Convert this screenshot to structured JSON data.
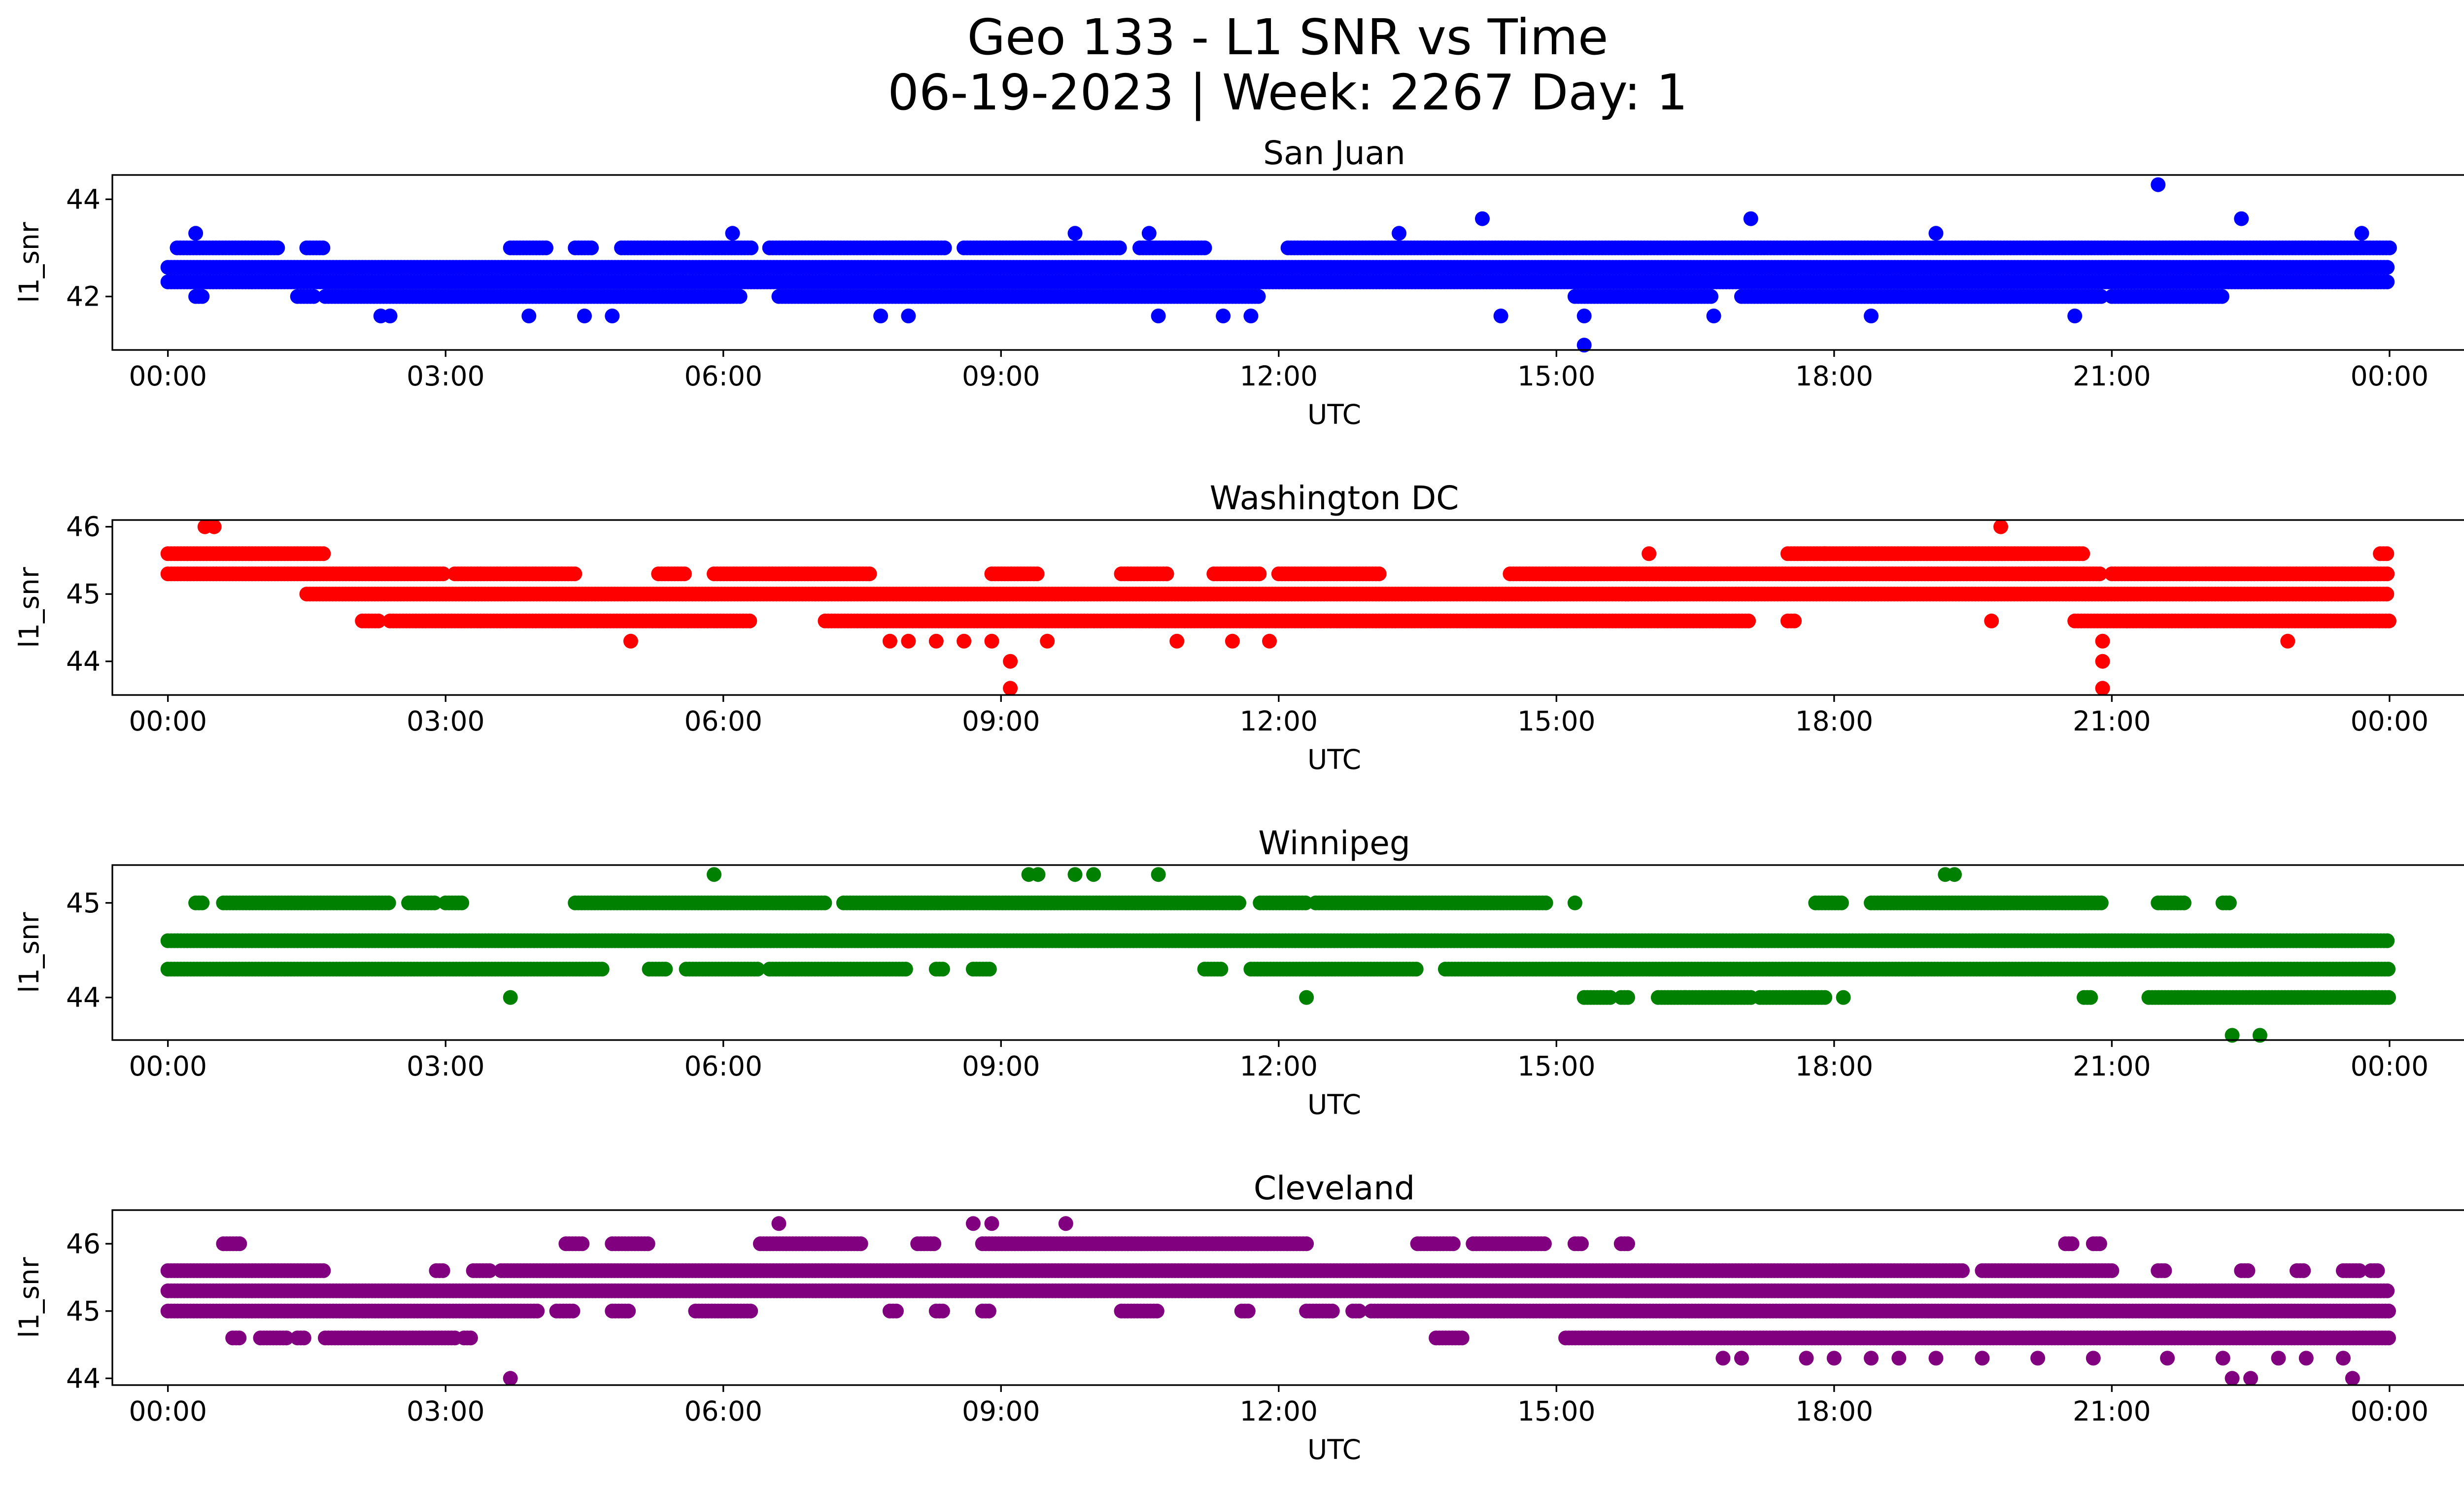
{
  "figure": {
    "title_line1": "Geo 133 - L1 SNR vs Time",
    "title_line2": "06-19-2023 | Week: 2267 Day: 1"
  },
  "chart_data": [
    {
      "type": "scatter",
      "title": "San Juan",
      "xlabel": "UTC",
      "ylabel": "l1_snr",
      "color": "#0000ff",
      "xlim_hours": [
        -0.6,
        25.8
      ],
      "ylim": [
        40.9,
        44.5
      ],
      "yticks": [
        42,
        44
      ],
      "xticks": [
        "00:00",
        "03:00",
        "06:00",
        "09:00",
        "12:00",
        "15:00",
        "18:00",
        "21:00",
        "00:00"
      ],
      "levels": [
        {
          "y": 42.3,
          "ranges": [
            [
              0,
              24
            ]
          ]
        },
        {
          "y": 42.6,
          "ranges": [
            [
              0,
              24
            ]
          ]
        },
        {
          "y": 43.0,
          "ranges": [
            [
              0.1,
              1.2
            ],
            [
              1.5,
              1.7
            ],
            [
              3.7,
              4.1
            ],
            [
              4.4,
              4.6
            ],
            [
              4.9,
              6.3
            ],
            [
              6.5,
              8.4
            ],
            [
              8.6,
              10.3
            ],
            [
              10.5,
              11.2
            ],
            [
              12.1,
              24
            ]
          ]
        },
        {
          "y": 42.0,
          "ranges": [
            [
              0.3,
              0.4
            ],
            [
              1.4,
              1.6
            ],
            [
              1.7,
              6.2
            ],
            [
              6.6,
              11.8
            ],
            [
              15.2,
              16.7
            ],
            [
              17.0,
              20.9
            ],
            [
              21.0,
              22.2
            ]
          ]
        }
      ],
      "outliers": [
        {
          "x": 0.3,
          "y": 43.3
        },
        {
          "x": 2.3,
          "y": 41.6
        },
        {
          "x": 2.4,
          "y": 41.6
        },
        {
          "x": 3.9,
          "y": 41.6
        },
        {
          "x": 4.5,
          "y": 41.6
        },
        {
          "x": 4.8,
          "y": 41.6
        },
        {
          "x": 6.1,
          "y": 43.3
        },
        {
          "x": 7.7,
          "y": 41.6
        },
        {
          "x": 8.0,
          "y": 41.6
        },
        {
          "x": 9.8,
          "y": 43.3
        },
        {
          "x": 10.6,
          "y": 43.3
        },
        {
          "x": 10.7,
          "y": 41.6
        },
        {
          "x": 11.4,
          "y": 41.6
        },
        {
          "x": 11.7,
          "y": 41.6
        },
        {
          "x": 13.3,
          "y": 43.3
        },
        {
          "x": 14.2,
          "y": 43.6
        },
        {
          "x": 14.4,
          "y": 41.6
        },
        {
          "x": 15.3,
          "y": 41.0
        },
        {
          "x": 15.3,
          "y": 41.6
        },
        {
          "x": 16.7,
          "y": 41.6
        },
        {
          "x": 17.1,
          "y": 43.6
        },
        {
          "x": 18.4,
          "y": 41.6
        },
        {
          "x": 19.1,
          "y": 43.3
        },
        {
          "x": 20.6,
          "y": 41.6
        },
        {
          "x": 21.5,
          "y": 44.3
        },
        {
          "x": 22.4,
          "y": 43.6
        },
        {
          "x": 23.7,
          "y": 43.3
        }
      ]
    },
    {
      "type": "scatter",
      "title": "Washington DC",
      "xlabel": "UTC",
      "ylabel": "l1_snr",
      "color": "#ff0000",
      "xlim_hours": [
        -0.6,
        25.8
      ],
      "ylim": [
        43.5,
        46.1
      ],
      "yticks": [
        44,
        45,
        46
      ],
      "xticks": [
        "00:00",
        "03:00",
        "06:00",
        "09:00",
        "12:00",
        "15:00",
        "18:00",
        "21:00",
        "00:00"
      ],
      "levels": [
        {
          "y": 45.6,
          "ranges": [
            [
              0,
              1.7
            ],
            [
              17.5,
              20.7
            ],
            [
              23.9,
              24
            ]
          ]
        },
        {
          "y": 45.3,
          "ranges": [
            [
              0,
              3.0
            ],
            [
              3.1,
              4.4
            ],
            [
              5.3,
              5.6
            ],
            [
              5.9,
              7.6
            ],
            [
              8.9,
              9.4
            ],
            [
              10.3,
              10.8
            ],
            [
              11.3,
              11.8
            ],
            [
              12.0,
              13.1
            ],
            [
              14.5,
              20.9
            ],
            [
              21.0,
              24
            ]
          ]
        },
        {
          "y": 45.0,
          "ranges": [
            [
              1.5,
              24
            ]
          ]
        },
        {
          "y": 44.6,
          "ranges": [
            [
              2.1,
              2.3
            ],
            [
              2.4,
              6.3
            ],
            [
              7.1,
              17.1
            ],
            [
              17.5,
              17.6
            ],
            [
              20.6,
              24
            ]
          ]
        }
      ],
      "outliers": [
        {
          "x": 0.4,
          "y": 46.0
        },
        {
          "x": 0.5,
          "y": 46.0
        },
        {
          "x": 5.0,
          "y": 44.3
        },
        {
          "x": 7.8,
          "y": 44.3
        },
        {
          "x": 8.0,
          "y": 44.3
        },
        {
          "x": 8.3,
          "y": 44.3
        },
        {
          "x": 8.6,
          "y": 44.3
        },
        {
          "x": 8.9,
          "y": 44.3
        },
        {
          "x": 9.1,
          "y": 44.0
        },
        {
          "x": 9.1,
          "y": 43.6
        },
        {
          "x": 9.5,
          "y": 44.3
        },
        {
          "x": 10.9,
          "y": 44.3
        },
        {
          "x": 11.5,
          "y": 44.3
        },
        {
          "x": 11.9,
          "y": 44.3
        },
        {
          "x": 16.0,
          "y": 45.6
        },
        {
          "x": 17.9,
          "y": 45.6
        },
        {
          "x": 19.7,
          "y": 44.6
        },
        {
          "x": 19.8,
          "y": 46.0
        },
        {
          "x": 20.9,
          "y": 44.3
        },
        {
          "x": 20.9,
          "y": 44.0
        },
        {
          "x": 20.9,
          "y": 43.6
        },
        {
          "x": 22.9,
          "y": 44.3
        }
      ]
    },
    {
      "type": "scatter",
      "title": "Winnipeg",
      "xlabel": "UTC",
      "ylabel": "l1_snr",
      "color": "#008000",
      "xlim_hours": [
        -0.6,
        25.8
      ],
      "ylim": [
        43.55,
        45.4
      ],
      "yticks": [
        44,
        45
      ],
      "xticks": [
        "00:00",
        "03:00",
        "06:00",
        "09:00",
        "12:00",
        "15:00",
        "18:00",
        "21:00",
        "00:00"
      ],
      "levels": [
        {
          "y": 44.6,
          "ranges": [
            [
              0,
              24
            ]
          ]
        },
        {
          "y": 44.3,
          "ranges": [
            [
              0,
              4.7
            ],
            [
              5.2,
              5.4
            ],
            [
              5.6,
              6.4
            ],
            [
              6.5,
              8.0
            ],
            [
              8.3,
              8.4
            ],
            [
              8.7,
              8.9
            ],
            [
              11.2,
              11.4
            ],
            [
              11.7,
              13.5
            ],
            [
              13.8,
              24
            ]
          ]
        },
        {
          "y": 45.0,
          "ranges": [
            [
              0.3,
              0.4
            ],
            [
              0.6,
              2.4
            ],
            [
              2.6,
              2.9
            ],
            [
              3.0,
              3.2
            ],
            [
              4.4,
              7.1
            ],
            [
              7.3,
              11.6
            ],
            [
              11.8,
              12.3
            ],
            [
              12.4,
              14.9
            ],
            [
              15.2,
              15.2
            ],
            [
              17.8,
              18.1
            ],
            [
              18.4,
              20.9
            ],
            [
              21.5,
              21.8
            ],
            [
              22.2,
              22.3
            ]
          ]
        },
        {
          "y": 44.0,
          "ranges": [
            [
              15.3,
              15.6
            ],
            [
              15.7,
              15.8
            ],
            [
              16.1,
              16.4
            ],
            [
              16.4,
              17.1
            ],
            [
              17.2,
              17.9
            ],
            [
              18.1,
              18.1
            ],
            [
              20.7,
              20.8
            ],
            [
              21.4,
              24
            ]
          ]
        }
      ],
      "outliers": [
        {
          "x": 3.7,
          "y": 44.0
        },
        {
          "x": 5.9,
          "y": 45.3
        },
        {
          "x": 9.3,
          "y": 45.3
        },
        {
          "x": 9.4,
          "y": 45.3
        },
        {
          "x": 9.8,
          "y": 45.3
        },
        {
          "x": 10.0,
          "y": 45.3
        },
        {
          "x": 10.7,
          "y": 45.3
        },
        {
          "x": 12.3,
          "y": 44.0
        },
        {
          "x": 19.2,
          "y": 45.3
        },
        {
          "x": 19.3,
          "y": 45.3
        },
        {
          "x": 22.3,
          "y": 43.6
        },
        {
          "x": 22.6,
          "y": 43.6
        }
      ]
    },
    {
      "type": "scatter",
      "title": "Cleveland",
      "xlabel": "UTC",
      "ylabel": "l1_snr",
      "color": "#800080",
      "xlim_hours": [
        -0.6,
        25.8
      ],
      "ylim": [
        43.9,
        46.5
      ],
      "yticks": [
        44,
        45,
        46
      ],
      "xticks": [
        "00:00",
        "03:00",
        "06:00",
        "09:00",
        "12:00",
        "15:00",
        "18:00",
        "21:00",
        "00:00"
      ],
      "levels": [
        {
          "y": 45.6,
          "ranges": [
            [
              0,
              1.7
            ],
            [
              2.9,
              3.0
            ],
            [
              3.3,
              3.5
            ],
            [
              3.6,
              19.4
            ],
            [
              19.6,
              21.0
            ],
            [
              21.5,
              21.6
            ],
            [
              22.4,
              22.5
            ],
            [
              23.0,
              23.1
            ],
            [
              23.5,
              23.7
            ],
            [
              23.8,
              23.9
            ]
          ]
        },
        {
          "y": 45.3,
          "ranges": [
            [
              0,
              24
            ]
          ]
        },
        {
          "y": 45.0,
          "ranges": [
            [
              0,
              4.0
            ],
            [
              4.2,
              4.4
            ],
            [
              4.8,
              5.0
            ],
            [
              5.7,
              6.3
            ],
            [
              7.8,
              7.9
            ],
            [
              8.3,
              8.4
            ],
            [
              8.8,
              8.9
            ],
            [
              10.3,
              10.7
            ],
            [
              11.6,
              11.7
            ],
            [
              12.3,
              12.6
            ],
            [
              12.8,
              12.9
            ],
            [
              13.0,
              24
            ]
          ]
        },
        {
          "y": 44.6,
          "ranges": [
            [
              0.7,
              0.8
            ],
            [
              1.0,
              1.3
            ],
            [
              1.4,
              1.5
            ],
            [
              1.7,
              3.1
            ],
            [
              3.2,
              3.3
            ],
            [
              13.7,
              14.0
            ],
            [
              15.1,
              24
            ]
          ]
        },
        {
          "y": 46.0,
          "ranges": [
            [
              0.6,
              0.8
            ],
            [
              4.3,
              4.5
            ],
            [
              4.8,
              5.2
            ],
            [
              6.4,
              7.5
            ],
            [
              8.1,
              8.3
            ],
            [
              8.8,
              12.3
            ],
            [
              13.5,
              13.9
            ],
            [
              14.1,
              14.9
            ],
            [
              15.2,
              15.3
            ],
            [
              15.7,
              15.8
            ],
            [
              20.5,
              20.6
            ],
            [
              20.8,
              20.9
            ]
          ]
        }
      ],
      "outliers": [
        {
          "x": 3.7,
          "y": 44.0
        },
        {
          "x": 6.6,
          "y": 46.3
        },
        {
          "x": 8.7,
          "y": 46.3
        },
        {
          "x": 8.9,
          "y": 46.3
        },
        {
          "x": 9.7,
          "y": 46.3
        },
        {
          "x": 16.8,
          "y": 44.3
        },
        {
          "x": 17.0,
          "y": 44.3
        },
        {
          "x": 17.7,
          "y": 44.3
        },
        {
          "x": 18.0,
          "y": 44.3
        },
        {
          "x": 18.4,
          "y": 44.3
        },
        {
          "x": 18.7,
          "y": 44.3
        },
        {
          "x": 19.1,
          "y": 44.3
        },
        {
          "x": 19.6,
          "y": 44.3
        },
        {
          "x": 20.2,
          "y": 44.3
        },
        {
          "x": 20.8,
          "y": 44.3
        },
        {
          "x": 21.6,
          "y": 44.3
        },
        {
          "x": 22.2,
          "y": 44.3
        },
        {
          "x": 22.3,
          "y": 44.0
        },
        {
          "x": 22.5,
          "y": 44.0
        },
        {
          "x": 22.8,
          "y": 44.3
        },
        {
          "x": 23.1,
          "y": 44.3
        },
        {
          "x": 23.5,
          "y": 44.3
        },
        {
          "x": 23.6,
          "y": 44.0
        }
      ]
    }
  ]
}
